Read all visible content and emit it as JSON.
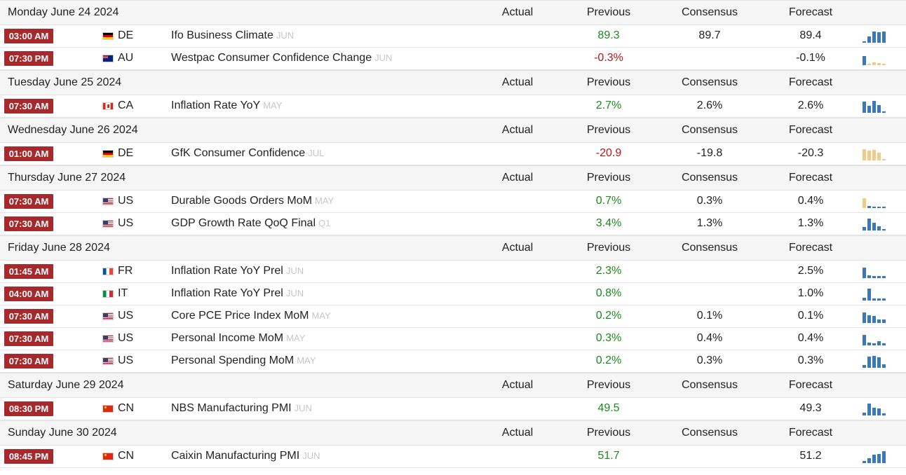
{
  "columns": {
    "actual": "Actual",
    "previous": "Previous",
    "consensus": "Consensus",
    "forecast": "Forecast"
  },
  "colors": {
    "time_badge": "#a8292b",
    "positive": "#1a8a1a",
    "negative": "#b5161b",
    "spark_blue": "#3a78b8",
    "spark_orange": "#f3c98a"
  },
  "days": [
    {
      "label": "Monday June 24 2024",
      "events": [
        {
          "time": "03:00 AM",
          "flag": "de",
          "country": "DE",
          "event": "Ifo Business Climate",
          "ref": "JUN",
          "actual": "",
          "previous": "89.3",
          "previous_sign": "pos",
          "consensus": "89.7",
          "forecast": "89.4",
          "spark_color": "blue",
          "spark": [
            0.1,
            0.5,
            0.9,
            0.85,
            0.9
          ]
        },
        {
          "time": "07:30 PM",
          "flag": "au",
          "country": "AU",
          "event": "Westpac Consumer Confidence Change",
          "ref": "JUN",
          "actual": "",
          "previous": "-0.3%",
          "previous_sign": "neg",
          "consensus": "",
          "forecast": "-0.1%",
          "spark_color": "mixed",
          "spark": [
            0.7,
            0.1,
            0.2,
            0.15,
            0.1
          ]
        }
      ]
    },
    {
      "label": "Tuesday June 25 2024",
      "events": [
        {
          "time": "07:30 AM",
          "flag": "ca",
          "country": "CA",
          "event": "Inflation Rate YoY",
          "ref": "MAY",
          "actual": "",
          "previous": "2.7%",
          "previous_sign": "pos",
          "consensus": "2.6%",
          "forecast": "2.6%",
          "spark_color": "blue",
          "spark": [
            0.9,
            0.55,
            0.95,
            0.6,
            0.1
          ]
        }
      ]
    },
    {
      "label": "Wednesday June 26 2024",
      "events": [
        {
          "time": "01:00 AM",
          "flag": "de",
          "country": "DE",
          "event": "GfK Consumer Confidence",
          "ref": "JUL",
          "actual": "",
          "previous": "-20.9",
          "previous_sign": "neg",
          "consensus": "-19.8",
          "forecast": "-20.3",
          "spark_color": "orange",
          "spark": [
            0.9,
            0.75,
            0.85,
            0.6,
            0.1
          ]
        }
      ]
    },
    {
      "label": "Thursday June 27 2024",
      "events": [
        {
          "time": "07:30 AM",
          "flag": "us",
          "country": "US",
          "event": "Durable Goods Orders MoM",
          "ref": "MAY",
          "actual": "",
          "previous": "0.7%",
          "previous_sign": "pos",
          "consensus": "0.3%",
          "forecast": "0.4%",
          "spark_color": "mixed2",
          "spark": [
            0.8,
            0.15,
            0.1,
            0.1,
            0.1
          ]
        },
        {
          "time": "07:30 AM",
          "flag": "us",
          "country": "US",
          "event": "GDP Growth Rate QoQ Final",
          "ref": "Q1",
          "actual": "",
          "previous": "3.4%",
          "previous_sign": "pos",
          "consensus": "1.3%",
          "forecast": "1.3%",
          "spark_color": "blue",
          "spark": [
            0.3,
            0.95,
            0.6,
            0.35,
            0.1
          ]
        }
      ]
    },
    {
      "label": "Friday June 28 2024",
      "events": [
        {
          "time": "01:45 AM",
          "flag": "fr",
          "country": "FR",
          "event": "Inflation Rate YoY Prel",
          "ref": "JUN",
          "actual": "",
          "previous": "2.3%",
          "previous_sign": "pos",
          "consensus": "",
          "forecast": "2.5%",
          "spark_color": "blue",
          "spark": [
            0.85,
            0.2,
            0.15,
            0.15,
            0.15
          ]
        },
        {
          "time": "04:00 AM",
          "flag": "it",
          "country": "IT",
          "event": "Inflation Rate YoY Prel",
          "ref": "JUN",
          "actual": "",
          "previous": "0.8%",
          "previous_sign": "pos",
          "consensus": "",
          "forecast": "1.0%",
          "spark_color": "blue",
          "spark": [
            0.2,
            0.95,
            0.15,
            0.15,
            0.15
          ]
        },
        {
          "time": "07:30 AM",
          "flag": "us",
          "country": "US",
          "event": "Core PCE Price Index MoM",
          "ref": "MAY",
          "actual": "",
          "previous": "0.2%",
          "previous_sign": "pos",
          "consensus": "0.1%",
          "forecast": "0.1%",
          "spark_color": "blue",
          "spark": [
            0.85,
            0.6,
            0.55,
            0.3,
            0.3
          ]
        },
        {
          "time": "07:30 AM",
          "flag": "us",
          "country": "US",
          "event": "Personal Income MoM",
          "ref": "MAY",
          "actual": "",
          "previous": "0.3%",
          "previous_sign": "pos",
          "consensus": "0.4%",
          "forecast": "0.4%",
          "spark_color": "blue",
          "spark": [
            0.85,
            0.2,
            0.15,
            0.35,
            0.15
          ]
        },
        {
          "time": "07:30 AM",
          "flag": "us",
          "country": "US",
          "event": "Personal Spending MoM",
          "ref": "MAY",
          "actual": "",
          "previous": "0.2%",
          "previous_sign": "pos",
          "consensus": "0.3%",
          "forecast": "0.3%",
          "spark_color": "blue",
          "spark": [
            0.2,
            0.9,
            0.95,
            0.85,
            0.3
          ]
        }
      ]
    },
    {
      "label": "Saturday June 29 2024",
      "events": [
        {
          "time": "08:30 PM",
          "flag": "cn",
          "country": "CN",
          "event": "NBS Manufacturing PMI",
          "ref": "JUN",
          "actual": "",
          "previous": "49.5",
          "previous_sign": "pos",
          "consensus": "",
          "forecast": "49.3",
          "spark_color": "blue",
          "spark": [
            0.2,
            0.95,
            0.6,
            0.55,
            0.15
          ]
        }
      ]
    },
    {
      "label": "Sunday June 30 2024",
      "events": [
        {
          "time": "08:45 PM",
          "flag": "cn",
          "country": "CN",
          "event": "Caixin Manufacturing PMI",
          "ref": "JUN",
          "actual": "",
          "previous": "51.7",
          "previous_sign": "pos",
          "consensus": "",
          "forecast": "51.2",
          "spark_color": "blue",
          "spark": [
            0.15,
            0.4,
            0.65,
            0.7,
            0.95
          ]
        }
      ]
    }
  ]
}
